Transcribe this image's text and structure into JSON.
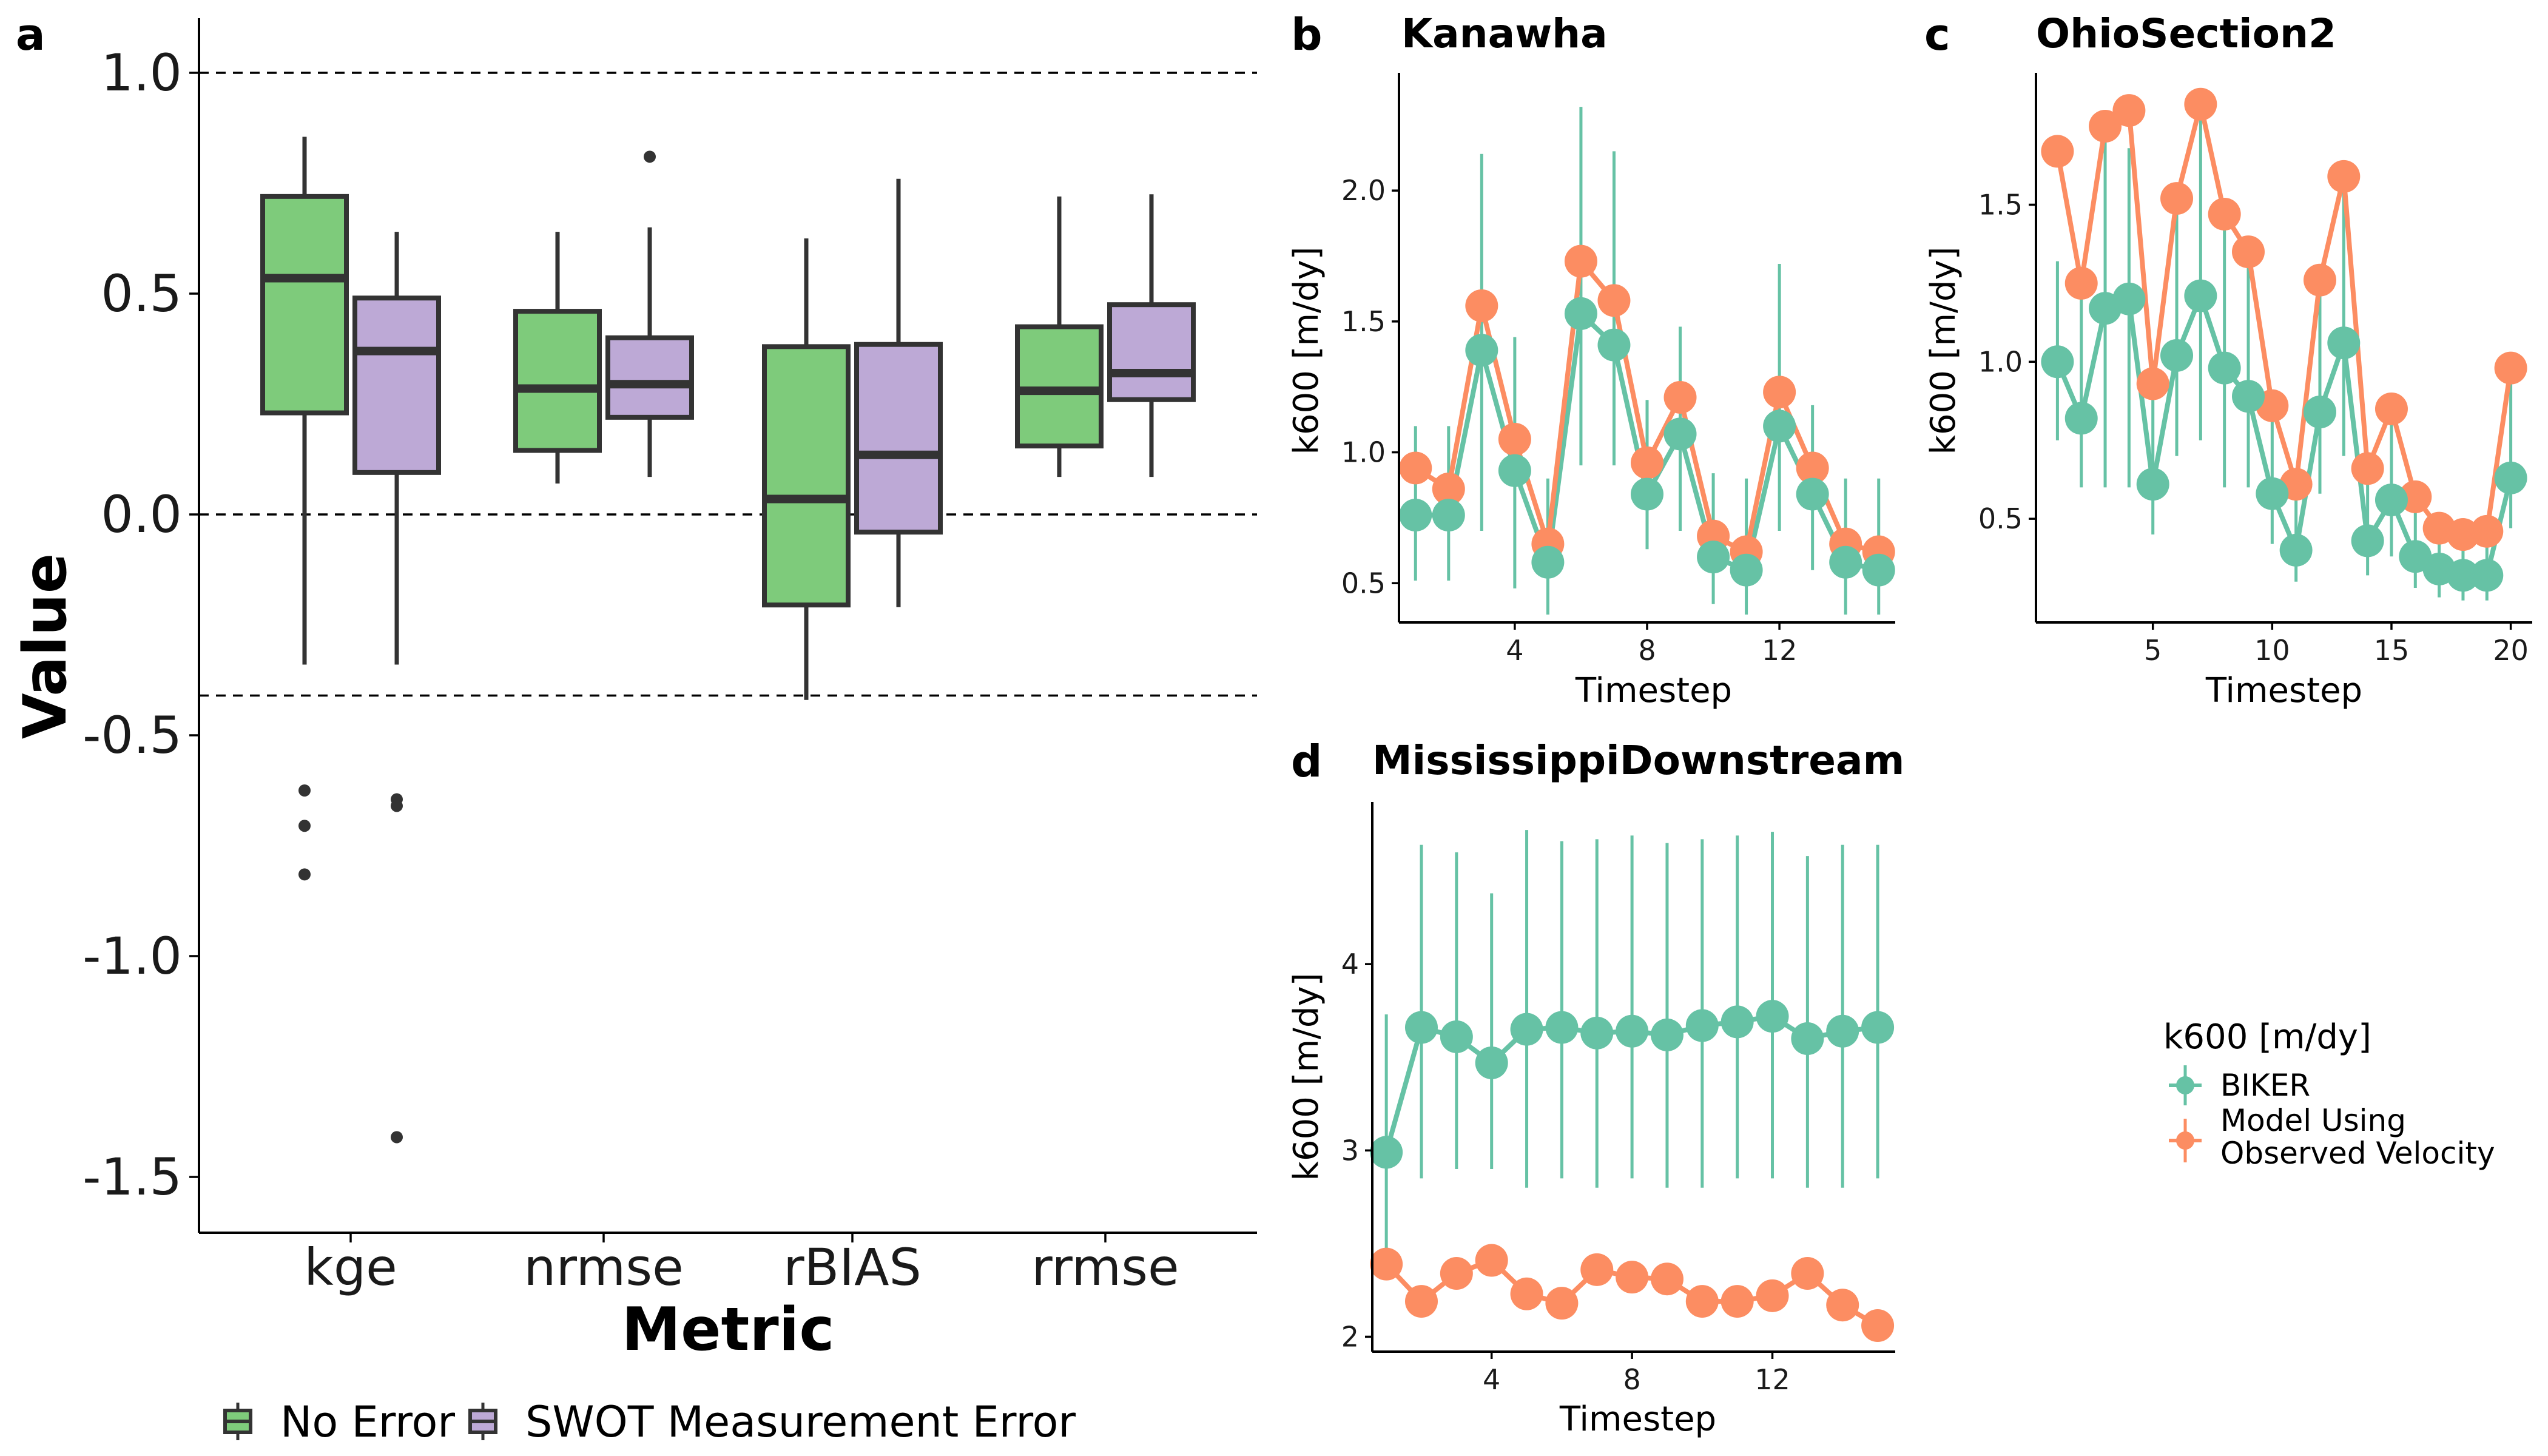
{
  "colors": {
    "no_error": "#7ECB7B",
    "swot_error": "#BDA9D6",
    "biker": "#66C2A5",
    "observed": "#FC8D62",
    "box_edge": "#333333"
  },
  "legend_a": {
    "placement": "bottom",
    "entries": [
      "No Error",
      "SWOT Measurement Error"
    ]
  },
  "legend_bcd": {
    "title": "k600 [m/dy]",
    "placement": "right",
    "entries": [
      "BIKER",
      "Model Using",
      "Observed Velocity"
    ]
  },
  "chart_data": [
    {
      "id": "a",
      "type": "box",
      "panel_label": "a",
      "xlabel": "Metric",
      "ylabel": "Value",
      "categories": [
        "kge",
        "nrmse",
        "rBIAS",
        "rrmse"
      ],
      "ylim": [
        -1.62,
        1.12
      ],
      "yticks": [
        1.0,
        0.5,
        0.0,
        -0.5,
        -1.0,
        -1.5
      ],
      "ytick_labels": [
        "1.0",
        "0.5",
        "0.0",
        "-0.5",
        "-1.0",
        "-1.5"
      ],
      "reference_lines": [
        1.0,
        0.0,
        -0.41
      ],
      "grid": false,
      "series": [
        {
          "name": "No Error",
          "boxes": [
            {
              "category": "kge",
              "whisker_low": -0.34,
              "q1": 0.23,
              "median": 0.535,
              "q3": 0.72,
              "whisker_high": 0.855,
              "outliers": [
                -0.625,
                -0.705,
                -0.815
              ]
            },
            {
              "category": "nrmse",
              "whisker_low": 0.07,
              "q1": 0.145,
              "median": 0.285,
              "q3": 0.46,
              "whisker_high": 0.64,
              "outliers": []
            },
            {
              "category": "rBIAS",
              "whisker_low": -0.42,
              "q1": -0.205,
              "median": 0.035,
              "q3": 0.38,
              "whisker_high": 0.625,
              "outliers": []
            },
            {
              "category": "rrmse",
              "whisker_low": 0.085,
              "q1": 0.155,
              "median": 0.28,
              "q3": 0.425,
              "whisker_high": 0.72,
              "outliers": []
            }
          ]
        },
        {
          "name": "SWOT Measurement Error",
          "boxes": [
            {
              "category": "kge",
              "whisker_low": -0.34,
              "q1": 0.095,
              "median": 0.37,
              "q3": 0.49,
              "whisker_high": 0.64,
              "outliers": [
                -0.645,
                -0.66,
                -1.41
              ]
            },
            {
              "category": "nrmse",
              "whisker_low": 0.085,
              "q1": 0.22,
              "median": 0.295,
              "q3": 0.4,
              "whisker_high": 0.65,
              "outliers": [
                0.81
              ]
            },
            {
              "category": "rBIAS",
              "whisker_low": -0.21,
              "q1": -0.04,
              "median": 0.135,
              "q3": 0.385,
              "whisker_high": 0.76,
              "outliers": []
            },
            {
              "category": "rrmse",
              "whisker_low": 0.085,
              "q1": 0.26,
              "median": 0.32,
              "q3": 0.475,
              "whisker_high": 0.725,
              "outliers": []
            }
          ]
        }
      ]
    },
    {
      "id": "b",
      "type": "line",
      "panel_label": "b",
      "title": "Kanawha",
      "xlabel": "Timestep",
      "ylabel": "k600 [m/dy]",
      "xlim": [
        0.5,
        15.5
      ],
      "ylim": [
        0.35,
        2.45
      ],
      "xticks": [
        4,
        8,
        12
      ],
      "xtick_labels": [
        "4",
        "8",
        "12"
      ],
      "yticks": [
        0.5,
        1.0,
        1.5,
        2.0
      ],
      "ytick_labels": [
        "0.5",
        "1.0",
        "1.5",
        "2.0"
      ],
      "series": [
        {
          "name": "BIKER",
          "x": [
            1,
            2,
            3,
            4,
            5,
            6,
            7,
            8,
            9,
            10,
            11,
            12,
            13,
            14,
            15
          ],
          "y": [
            0.76,
            0.76,
            1.39,
            0.93,
            0.58,
            1.53,
            1.41,
            0.84,
            1.07,
            0.6,
            0.55,
            1.1,
            0.84,
            0.58,
            0.55
          ],
          "err_low": [
            0.51,
            0.51,
            0.7,
            0.48,
            0.38,
            0.95,
            0.95,
            0.63,
            0.7,
            0.42,
            0.38,
            0.7,
            0.55,
            0.38,
            0.38
          ],
          "err_high": [
            1.1,
            1.1,
            2.14,
            1.44,
            0.9,
            2.32,
            2.15,
            1.2,
            1.48,
            0.92,
            0.9,
            1.72,
            1.18,
            0.9,
            0.9
          ]
        },
        {
          "name": "Model Using Observed Velocity",
          "x": [
            1,
            2,
            3,
            4,
            5,
            6,
            7,
            8,
            9,
            10,
            11,
            12,
            13,
            14,
            15
          ],
          "y": [
            0.94,
            0.86,
            1.56,
            1.05,
            0.65,
            1.73,
            1.58,
            0.96,
            1.21,
            0.68,
            0.62,
            1.23,
            0.94,
            0.65,
            0.62
          ]
        }
      ]
    },
    {
      "id": "c",
      "type": "line",
      "panel_label": "c",
      "title": "OhioSection2",
      "xlabel": "Timestep",
      "ylabel": "k600 [m/dy]",
      "xlim": [
        0.1,
        20.9
      ],
      "ylim": [
        0.17,
        1.92
      ],
      "xticks": [
        5,
        10,
        15,
        20
      ],
      "xtick_labels": [
        "5",
        "10",
        "15",
        "20"
      ],
      "yticks": [
        0.5,
        1.0,
        1.5
      ],
      "ytick_labels": [
        "0.5",
        "1.0",
        "1.5"
      ],
      "series": [
        {
          "name": "BIKER",
          "x": [
            1,
            2,
            3,
            4,
            5,
            6,
            7,
            8,
            9,
            10,
            11,
            12,
            13,
            14,
            15,
            16,
            17,
            18,
            19,
            20
          ],
          "y": [
            1.0,
            0.82,
            1.17,
            1.2,
            0.61,
            1.02,
            1.21,
            0.98,
            0.89,
            0.58,
            0.4,
            0.84,
            1.06,
            0.43,
            0.56,
            0.38,
            0.34,
            0.32,
            0.32,
            0.63
          ],
          "err_low": [
            0.75,
            0.6,
            0.6,
            0.6,
            0.45,
            0.7,
            0.75,
            0.6,
            0.6,
            0.42,
            0.3,
            0.58,
            0.7,
            0.32,
            0.38,
            0.28,
            0.25,
            0.24,
            0.24,
            0.47
          ],
          "err_high": [
            1.32,
            1.25,
            1.7,
            1.68,
            0.92,
            1.5,
            1.8,
            1.45,
            1.3,
            0.88,
            0.6,
            1.27,
            1.58,
            0.68,
            0.8,
            0.6,
            0.52,
            0.5,
            0.5,
            1.0
          ]
        },
        {
          "name": "Model Using Observed Velocity",
          "x": [
            1,
            2,
            3,
            4,
            5,
            6,
            7,
            8,
            9,
            10,
            11,
            12,
            13,
            14,
            15,
            16,
            17,
            18,
            19,
            20
          ],
          "y": [
            1.67,
            1.25,
            1.75,
            1.8,
            0.93,
            1.52,
            1.82,
            1.47,
            1.35,
            0.86,
            0.61,
            1.26,
            1.59,
            0.66,
            0.85,
            0.57,
            0.47,
            0.45,
            0.46,
            0.98
          ]
        }
      ]
    },
    {
      "id": "d",
      "type": "line",
      "panel_label": "d",
      "title": "MississippiDownstream",
      "xlabel": "Timestep",
      "ylabel": "k600 [m/dy]",
      "xlim": [
        0.6,
        15.5
      ],
      "ylim": [
        1.92,
        4.87
      ],
      "xticks": [
        4,
        8,
        12
      ],
      "xtick_labels": [
        "4",
        "8",
        "12"
      ],
      "yticks": [
        2,
        3,
        4
      ],
      "ytick_labels": [
        "2",
        "3",
        "4"
      ],
      "series": [
        {
          "name": "BIKER",
          "x": [
            1,
            2,
            3,
            4,
            5,
            6,
            7,
            8,
            9,
            10,
            11,
            12,
            13,
            14,
            15
          ],
          "y": [
            2.99,
            3.66,
            3.61,
            3.47,
            3.65,
            3.66,
            3.63,
            3.64,
            3.62,
            3.67,
            3.69,
            3.72,
            3.6,
            3.64,
            3.66
          ],
          "err_low": [
            2.45,
            2.85,
            2.9,
            2.9,
            2.8,
            2.85,
            2.8,
            2.85,
            2.8,
            2.8,
            2.85,
            2.85,
            2.8,
            2.8,
            2.85
          ],
          "err_high": [
            3.73,
            4.64,
            4.6,
            4.38,
            4.72,
            4.66,
            4.67,
            4.69,
            4.65,
            4.67,
            4.69,
            4.71,
            4.58,
            4.64,
            4.64
          ]
        },
        {
          "name": "Model Using Observed Velocity",
          "x": [
            1,
            2,
            3,
            4,
            5,
            6,
            7,
            8,
            9,
            10,
            11,
            12,
            13,
            14,
            15
          ],
          "y": [
            2.39,
            2.19,
            2.34,
            2.41,
            2.23,
            2.18,
            2.36,
            2.32,
            2.31,
            2.19,
            2.19,
            2.22,
            2.34,
            2.17,
            2.06
          ]
        }
      ]
    }
  ]
}
